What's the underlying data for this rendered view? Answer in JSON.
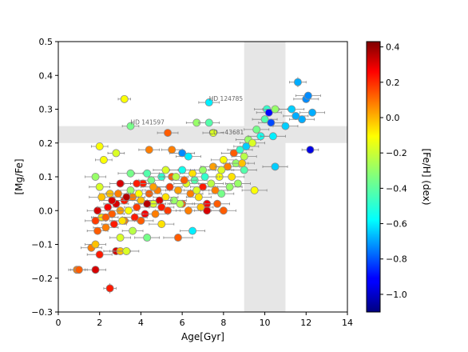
{
  "chart_data": {
    "type": "scatter",
    "xlabel": "Age[Gyr]",
    "ylabel": "[Mg/Fe]",
    "xlim": [
      0,
      14
    ],
    "ylim": [
      -0.3,
      0.5
    ],
    "x_ticks": [
      "0",
      "2",
      "4",
      "6",
      "8",
      "10",
      "12",
      "14"
    ],
    "y_ticks": [
      "−0.3",
      "−0.2",
      "−0.1",
      "0.0",
      "0.1",
      "0.2",
      "0.3",
      "0.4",
      "0.5"
    ],
    "x_tick_values": [
      0,
      2,
      4,
      6,
      8,
      10,
      12,
      14
    ],
    "y_tick_values": [
      -0.3,
      -0.2,
      -0.1,
      0.0,
      0.1,
      0.2,
      0.3,
      0.4,
      0.5
    ],
    "grid": false,
    "colorbar": {
      "label": "[Fe/H] (dex)",
      "min": -1.1,
      "max": 0.43,
      "ticks": [
        "0.4",
        "0.2",
        "0.0",
        "−0.2",
        "−0.4",
        "−0.6",
        "−0.8",
        "−1.0"
      ],
      "tick_values": [
        0.4,
        0.2,
        0.0,
        -0.2,
        -0.4,
        -0.6,
        -0.8,
        -1.0
      ],
      "colormap": "jet"
    },
    "shaded_regions": [
      {
        "axis": "x",
        "range": [
          9.0,
          11.0
        ],
        "color": "#e6e6e6"
      },
      {
        "axis": "y",
        "range": [
          0.2,
          0.25
        ],
        "color": "#e6e6e6"
      }
    ],
    "annotations": [
      {
        "text": "HD 124785",
        "x": 7.3,
        "y": 0.325
      },
      {
        "text": "HD 141597",
        "x": 3.5,
        "y": 0.255
      },
      {
        "text": "CD −43681",
        "x": 7.3,
        "y": 0.225
      }
    ],
    "points": [
      {
        "x": 0.9,
        "y": -0.175,
        "xerr": 0.4,
        "yerr": 0.008,
        "feh": 0.05
      },
      {
        "x": 1.0,
        "y": -0.175,
        "xerr": 0.4,
        "yerr": 0.008,
        "feh": 0.1
      },
      {
        "x": 1.8,
        "y": -0.175,
        "xerr": 0.5,
        "yerr": 0.008,
        "feh": 0.3
      },
      {
        "x": 2.5,
        "y": -0.23,
        "xerr": 0.3,
        "yerr": 0.015,
        "feh": 0.2
      },
      {
        "x": 1.6,
        "y": -0.11,
        "xerr": 0.5,
        "yerr": 0.01,
        "feh": 0.05
      },
      {
        "x": 2.0,
        "y": -0.13,
        "xerr": 0.6,
        "yerr": 0.01,
        "feh": 0.2
      },
      {
        "x": 1.8,
        "y": -0.1,
        "xerr": 0.5,
        "yerr": 0.01,
        "feh": -0.05
      },
      {
        "x": 2.8,
        "y": -0.12,
        "xerr": 0.6,
        "yerr": 0.01,
        "feh": 0.3
      },
      {
        "x": 3.0,
        "y": -0.12,
        "xerr": 0.5,
        "yerr": 0.01,
        "feh": -0.05
      },
      {
        "x": 3.3,
        "y": -0.12,
        "xerr": 0.6,
        "yerr": 0.01,
        "feh": -0.2
      },
      {
        "x": 3.0,
        "y": -0.08,
        "xerr": 0.5,
        "yerr": 0.01,
        "feh": -0.2
      },
      {
        "x": 4.3,
        "y": -0.08,
        "xerr": 0.6,
        "yerr": 0.01,
        "feh": -0.35
      },
      {
        "x": 5.8,
        "y": -0.08,
        "xerr": 0.7,
        "yerr": 0.01,
        "feh": 0.1
      },
      {
        "x": 6.5,
        "y": -0.06,
        "xerr": 0.6,
        "yerr": 0.01,
        "feh": -0.55
      },
      {
        "x": 1.9,
        "y": -0.06,
        "xerr": 0.5,
        "yerr": 0.01,
        "feh": 0.1
      },
      {
        "x": 2.3,
        "y": -0.05,
        "xerr": 0.6,
        "yerr": 0.01,
        "feh": 0.05
      },
      {
        "x": 2.7,
        "y": -0.04,
        "xerr": 0.6,
        "yerr": 0.01,
        "feh": 0.2
      },
      {
        "x": 3.2,
        "y": -0.03,
        "xerr": 0.6,
        "yerr": 0.01,
        "feh": 0.05
      },
      {
        "x": 3.6,
        "y": -0.06,
        "xerr": 0.5,
        "yerr": 0.01,
        "feh": -0.25
      },
      {
        "x": 4.0,
        "y": -0.03,
        "xerr": 0.6,
        "yerr": 0.01,
        "feh": 0.1
      },
      {
        "x": 5.0,
        "y": -0.04,
        "xerr": 0.6,
        "yerr": 0.01,
        "feh": -0.1
      },
      {
        "x": 1.9,
        "y": 0.0,
        "xerr": 0.5,
        "yerr": 0.01,
        "feh": 0.3
      },
      {
        "x": 2.1,
        "y": -0.02,
        "xerr": 0.5,
        "yerr": 0.01,
        "feh": -0.1
      },
      {
        "x": 2.4,
        "y": 0.01,
        "xerr": 0.5,
        "yerr": 0.01,
        "feh": 0.25
      },
      {
        "x": 2.6,
        "y": -0.01,
        "xerr": 0.6,
        "yerr": 0.01,
        "feh": 0.1
      },
      {
        "x": 2.8,
        "y": 0.02,
        "xerr": 0.6,
        "yerr": 0.01,
        "feh": 0.3
      },
      {
        "x": 3.0,
        "y": 0.0,
        "xerr": 0.6,
        "yerr": 0.01,
        "feh": 0.0
      },
      {
        "x": 3.2,
        "y": 0.03,
        "xerr": 0.6,
        "yerr": 0.01,
        "feh": 0.2
      },
      {
        "x": 3.4,
        "y": 0.0,
        "xerr": 0.5,
        "yerr": 0.01,
        "feh": -0.15
      },
      {
        "x": 3.6,
        "y": 0.04,
        "xerr": 0.6,
        "yerr": 0.01,
        "feh": 0.05
      },
      {
        "x": 3.8,
        "y": 0.01,
        "xerr": 0.6,
        "yerr": 0.01,
        "feh": 0.15
      },
      {
        "x": 4.0,
        "y": 0.03,
        "xerr": 0.6,
        "yerr": 0.01,
        "feh": -0.05
      },
      {
        "x": 4.2,
        "y": -0.01,
        "xerr": 0.5,
        "yerr": 0.01,
        "feh": 0.25
      },
      {
        "x": 4.4,
        "y": 0.05,
        "xerr": 0.6,
        "yerr": 0.01,
        "feh": 0.1
      },
      {
        "x": 4.6,
        "y": 0.02,
        "xerr": 0.6,
        "yerr": 0.01,
        "feh": -0.2
      },
      {
        "x": 4.8,
        "y": 0.06,
        "xerr": 0.6,
        "yerr": 0.01,
        "feh": 0.05
      },
      {
        "x": 5.0,
        "y": 0.01,
        "xerr": 0.6,
        "yerr": 0.01,
        "feh": 0.2
      },
      {
        "x": 5.2,
        "y": 0.04,
        "xerr": 0.6,
        "yerr": 0.01,
        "feh": -0.1
      },
      {
        "x": 5.4,
        "y": 0.07,
        "xerr": 0.6,
        "yerr": 0.01,
        "feh": 0.15
      },
      {
        "x": 5.6,
        "y": 0.03,
        "xerr": 0.6,
        "yerr": 0.01,
        "feh": -0.3
      },
      {
        "x": 5.8,
        "y": 0.06,
        "xerr": 0.6,
        "yerr": 0.01,
        "feh": 0.0
      },
      {
        "x": 6.0,
        "y": 0.02,
        "xerr": 0.6,
        "yerr": 0.01,
        "feh": 0.1
      },
      {
        "x": 6.2,
        "y": 0.08,
        "xerr": 0.6,
        "yerr": 0.01,
        "feh": -0.2
      },
      {
        "x": 6.4,
        "y": 0.05,
        "xerr": 0.6,
        "yerr": 0.01,
        "feh": 0.05
      },
      {
        "x": 6.6,
        "y": 0.09,
        "xerr": 0.6,
        "yerr": 0.01,
        "feh": -0.4
      },
      {
        "x": 6.8,
        "y": 0.04,
        "xerr": 0.6,
        "yerr": 0.01,
        "feh": -0.1
      },
      {
        "x": 7.0,
        "y": 0.07,
        "xerr": 0.6,
        "yerr": 0.01,
        "feh": 0.2
      },
      {
        "x": 7.2,
        "y": 0.02,
        "xerr": 0.6,
        "yerr": 0.01,
        "feh": 0.25
      },
      {
        "x": 7.4,
        "y": 0.08,
        "xerr": 0.6,
        "yerr": 0.01,
        "feh": -0.25
      },
      {
        "x": 7.6,
        "y": 0.06,
        "xerr": 0.6,
        "yerr": 0.01,
        "feh": 0.05
      },
      {
        "x": 7.8,
        "y": 0.1,
        "xerr": 0.6,
        "yerr": 0.01,
        "feh": -0.15
      },
      {
        "x": 8.0,
        "y": 0.0,
        "xerr": 0.6,
        "yerr": 0.01,
        "feh": 0.1
      },
      {
        "x": 2.0,
        "y": 0.07,
        "xerr": 0.5,
        "yerr": 0.01,
        "feh": -0.2
      },
      {
        "x": 2.5,
        "y": 0.05,
        "xerr": 0.5,
        "yerr": 0.01,
        "feh": -0.05
      },
      {
        "x": 3.0,
        "y": 0.08,
        "xerr": 0.5,
        "yerr": 0.01,
        "feh": 0.3
      },
      {
        "x": 3.5,
        "y": 0.06,
        "xerr": 0.6,
        "yerr": 0.01,
        "feh": -0.3
      },
      {
        "x": 4.1,
        "y": 0.08,
        "xerr": 0.6,
        "yerr": 0.01,
        "feh": 0.2
      },
      {
        "x": 4.5,
        "y": 0.09,
        "xerr": 0.6,
        "yerr": 0.01,
        "feh": -0.35
      },
      {
        "x": 5.0,
        "y": 0.1,
        "xerr": 0.6,
        "yerr": 0.01,
        "feh": -0.45
      },
      {
        "x": 5.5,
        "y": 0.1,
        "xerr": 0.6,
        "yerr": 0.01,
        "feh": 0.1
      },
      {
        "x": 6.0,
        "y": 0.12,
        "xerr": 0.6,
        "yerr": 0.01,
        "feh": -0.5
      },
      {
        "x": 6.5,
        "y": 0.11,
        "xerr": 0.6,
        "yerr": 0.01,
        "feh": -0.1
      },
      {
        "x": 7.0,
        "y": 0.12,
        "xerr": 0.6,
        "yerr": 0.01,
        "feh": -0.3
      },
      {
        "x": 7.5,
        "y": 0.13,
        "xerr": 0.6,
        "yerr": 0.01,
        "feh": 0.0
      },
      {
        "x": 1.8,
        "y": 0.1,
        "xerr": 0.5,
        "yerr": 0.01,
        "feh": -0.3
      },
      {
        "x": 2.2,
        "y": 0.15,
        "xerr": 0.4,
        "yerr": 0.01,
        "feh": -0.15
      },
      {
        "x": 2.0,
        "y": 0.19,
        "xerr": 0.4,
        "yerr": 0.01,
        "feh": -0.15
      },
      {
        "x": 2.8,
        "y": 0.17,
        "xerr": 0.4,
        "yerr": 0.01,
        "feh": -0.2
      },
      {
        "x": 3.5,
        "y": 0.11,
        "xerr": 0.6,
        "yerr": 0.01,
        "feh": -0.35
      },
      {
        "x": 4.3,
        "y": 0.11,
        "xerr": 0.6,
        "yerr": 0.01,
        "feh": -0.4
      },
      {
        "x": 4.4,
        "y": 0.18,
        "xerr": 0.5,
        "yerr": 0.01,
        "feh": 0.05
      },
      {
        "x": 5.2,
        "y": 0.12,
        "xerr": 0.6,
        "yerr": 0.01,
        "feh": -0.2
      },
      {
        "x": 5.5,
        "y": 0.18,
        "xerr": 0.5,
        "yerr": 0.01,
        "feh": 0.05
      },
      {
        "x": 6.0,
        "y": 0.17,
        "xerr": 0.6,
        "yerr": 0.01,
        "feh": -0.7
      },
      {
        "x": 6.3,
        "y": 0.16,
        "xerr": 0.6,
        "yerr": 0.01,
        "feh": -0.55
      },
      {
        "x": 5.3,
        "y": 0.23,
        "xerr": 0.5,
        "yerr": 0.01,
        "feh": 0.1
      },
      {
        "x": 3.2,
        "y": 0.33,
        "xerr": 0.3,
        "yerr": 0.01,
        "feh": -0.15
      },
      {
        "x": 3.5,
        "y": 0.25,
        "xerr": 0.4,
        "yerr": 0.01,
        "feh": -0.35
      },
      {
        "x": 6.7,
        "y": 0.26,
        "xerr": 0.5,
        "yerr": 0.01,
        "feh": -0.3
      },
      {
        "x": 7.3,
        "y": 0.26,
        "xerr": 0.5,
        "yerr": 0.01,
        "feh": -0.4
      },
      {
        "x": 7.3,
        "y": 0.32,
        "xerr": 0.5,
        "yerr": 0.01,
        "feh": -0.55
      },
      {
        "x": 7.5,
        "y": 0.23,
        "xerr": 0.5,
        "yerr": 0.01,
        "feh": -0.2
      },
      {
        "x": 8.0,
        "y": 0.15,
        "xerr": 0.6,
        "yerr": 0.01,
        "feh": -0.15
      },
      {
        "x": 8.2,
        "y": 0.13,
        "xerr": 0.6,
        "yerr": 0.01,
        "feh": 0.05
      },
      {
        "x": 8.5,
        "y": 0.17,
        "xerr": 0.6,
        "yerr": 0.01,
        "feh": 0.1
      },
      {
        "x": 8.6,
        "y": 0.14,
        "xerr": 0.6,
        "yerr": 0.01,
        "feh": -0.3
      },
      {
        "x": 8.8,
        "y": 0.18,
        "xerr": 0.6,
        "yerr": 0.01,
        "feh": -0.45
      },
      {
        "x": 9.0,
        "y": 0.16,
        "xerr": 0.6,
        "yerr": 0.01,
        "feh": -0.25
      },
      {
        "x": 9.1,
        "y": 0.19,
        "xerr": 0.6,
        "yerr": 0.01,
        "feh": -0.6
      },
      {
        "x": 9.2,
        "y": 0.21,
        "xerr": 0.6,
        "yerr": 0.01,
        "feh": -0.3
      },
      {
        "x": 9.4,
        "y": 0.2,
        "xerr": 0.6,
        "yerr": 0.01,
        "feh": -0.2
      },
      {
        "x": 9.6,
        "y": 0.24,
        "xerr": 0.6,
        "yerr": 0.01,
        "feh": -0.35
      },
      {
        "x": 9.8,
        "y": 0.22,
        "xerr": 0.6,
        "yerr": 0.01,
        "feh": -0.5
      },
      {
        "x": 10.0,
        "y": 0.27,
        "xerr": 0.6,
        "yerr": 0.01,
        "feh": -0.4
      },
      {
        "x": 10.1,
        "y": 0.3,
        "xerr": 0.6,
        "yerr": 0.01,
        "feh": -0.45
      },
      {
        "x": 10.2,
        "y": 0.29,
        "xerr": 0.6,
        "yerr": 0.01,
        "feh": -0.9
      },
      {
        "x": 10.3,
        "y": 0.26,
        "xerr": 0.6,
        "yerr": 0.01,
        "feh": -0.8
      },
      {
        "x": 10.4,
        "y": 0.22,
        "xerr": 0.6,
        "yerr": 0.01,
        "feh": -0.55
      },
      {
        "x": 10.5,
        "y": 0.3,
        "xerr": 0.6,
        "yerr": 0.01,
        "feh": -0.3
      },
      {
        "x": 10.5,
        "y": 0.13,
        "xerr": 0.6,
        "yerr": 0.01,
        "feh": -0.6
      },
      {
        "x": 11.0,
        "y": 0.25,
        "xerr": 0.6,
        "yerr": 0.01,
        "feh": -0.6
      },
      {
        "x": 11.3,
        "y": 0.3,
        "xerr": 0.6,
        "yerr": 0.01,
        "feh": -0.6
      },
      {
        "x": 11.5,
        "y": 0.28,
        "xerr": 0.6,
        "yerr": 0.01,
        "feh": -0.65
      },
      {
        "x": 11.6,
        "y": 0.38,
        "xerr": 0.4,
        "yerr": 0.015,
        "feh": -0.65
      },
      {
        "x": 11.8,
        "y": 0.27,
        "xerr": 0.6,
        "yerr": 0.01,
        "feh": -0.65
      },
      {
        "x": 12.0,
        "y": 0.33,
        "xerr": 0.6,
        "yerr": 0.01,
        "feh": -0.7
      },
      {
        "x": 12.1,
        "y": 0.34,
        "xerr": 0.6,
        "yerr": 0.01,
        "feh": -0.7
      },
      {
        "x": 12.3,
        "y": 0.29,
        "xerr": 0.6,
        "yerr": 0.01,
        "feh": -0.65
      },
      {
        "x": 12.2,
        "y": 0.18,
        "xerr": 0.4,
        "yerr": 0.01,
        "feh": -0.95
      },
      {
        "x": 9.5,
        "y": 0.06,
        "xerr": 0.6,
        "yerr": 0.01,
        "feh": -0.15
      },
      {
        "x": 9.0,
        "y": 0.12,
        "xerr": 0.6,
        "yerr": 0.01,
        "feh": -0.4
      },
      {
        "x": 8.7,
        "y": 0.08,
        "xerr": 0.6,
        "yerr": 0.01,
        "feh": -0.3
      },
      {
        "x": 8.4,
        "y": 0.1,
        "xerr": 0.6,
        "yerr": 0.01,
        "feh": -0.1
      },
      {
        "x": 7.9,
        "y": 0.05,
        "xerr": 0.6,
        "yerr": 0.01,
        "feh": -0.35
      },
      {
        "x": 7.7,
        "y": 0.02,
        "xerr": 0.6,
        "yerr": 0.01,
        "feh": 0.1
      },
      {
        "x": 7.2,
        "y": 0.0,
        "xerr": 0.6,
        "yerr": 0.01,
        "feh": 0.3
      },
      {
        "x": 6.9,
        "y": 0.01,
        "xerr": 0.6,
        "yerr": 0.01,
        "feh": -0.05
      },
      {
        "x": 6.7,
        "y": 0.06,
        "xerr": 0.6,
        "yerr": 0.01,
        "feh": -0.2
      },
      {
        "x": 6.3,
        "y": 0.0,
        "xerr": 0.6,
        "yerr": 0.01,
        "feh": 0.05
      },
      {
        "x": 5.9,
        "y": 0.02,
        "xerr": 0.6,
        "yerr": 0.01,
        "feh": -0.25
      },
      {
        "x": 5.3,
        "y": 0.0,
        "xerr": 0.6,
        "yerr": 0.01,
        "feh": 0.15
      },
      {
        "x": 4.9,
        "y": 0.03,
        "xerr": 0.6,
        "yerr": 0.01,
        "feh": 0.3
      },
      {
        "x": 4.7,
        "y": -0.01,
        "xerr": 0.6,
        "yerr": 0.01,
        "feh": 0.05
      },
      {
        "x": 4.3,
        "y": 0.02,
        "xerr": 0.6,
        "yerr": 0.01,
        "feh": 0.35
      },
      {
        "x": 3.9,
        "y": 0.05,
        "xerr": 0.6,
        "yerr": 0.01,
        "feh": -0.15
      },
      {
        "x": 3.7,
        "y": -0.02,
        "xerr": 0.6,
        "yerr": 0.01,
        "feh": 0.2
      },
      {
        "x": 3.3,
        "y": 0.04,
        "xerr": 0.6,
        "yerr": 0.01,
        "feh": 0.35
      },
      {
        "x": 3.1,
        "y": -0.03,
        "xerr": 0.6,
        "yerr": 0.01,
        "feh": -0.1
      },
      {
        "x": 2.9,
        "y": 0.05,
        "xerr": 0.6,
        "yerr": 0.01,
        "feh": 0.05
      },
      {
        "x": 2.6,
        "y": 0.03,
        "xerr": 0.6,
        "yerr": 0.01,
        "feh": 0.3
      },
      {
        "x": 2.3,
        "y": -0.02,
        "xerr": 0.6,
        "yerr": 0.01,
        "feh": 0.1
      },
      {
        "x": 2.1,
        "y": 0.04,
        "xerr": 0.6,
        "yerr": 0.01,
        "feh": -0.05
      },
      {
        "x": 1.8,
        "y": -0.03,
        "xerr": 0.5,
        "yerr": 0.01,
        "feh": 0.15
      },
      {
        "x": 3.8,
        "y": 0.08,
        "xerr": 0.6,
        "yerr": 0.01,
        "feh": 0.2
      },
      {
        "x": 4.6,
        "y": 0.07,
        "xerr": 0.6,
        "yerr": 0.01,
        "feh": 0.0
      },
      {
        "x": 5.7,
        "y": 0.1,
        "xerr": 0.6,
        "yerr": 0.01,
        "feh": -0.25
      },
      {
        "x": 6.1,
        "y": 0.09,
        "xerr": 0.6,
        "yerr": 0.01,
        "feh": 0.1
      },
      {
        "x": 7.1,
        "y": 0.1,
        "xerr": 0.6,
        "yerr": 0.01,
        "feh": -0.45
      },
      {
        "x": 7.9,
        "y": 0.12,
        "xerr": 0.6,
        "yerr": 0.01,
        "feh": -0.2
      },
      {
        "x": 8.3,
        "y": 0.07,
        "xerr": 0.6,
        "yerr": 0.01,
        "feh": -0.3
      },
      {
        "x": 8.9,
        "y": 0.14,
        "xerr": 0.6,
        "yerr": 0.01,
        "feh": -0.05
      }
    ]
  }
}
